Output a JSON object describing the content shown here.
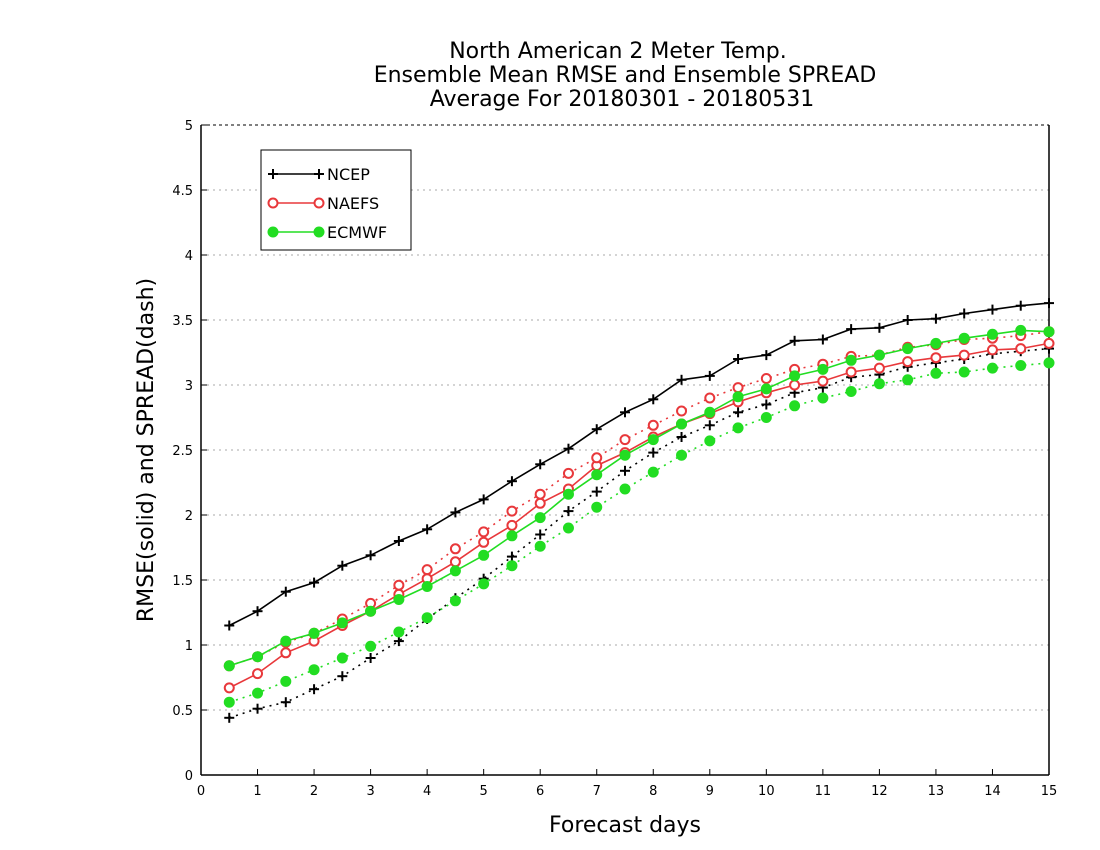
{
  "chart_data": {
    "type": "line",
    "title_lines": [
      "North American 2 Meter Temp.",
      "Ensemble Mean RMSE and Ensemble SPREAD",
      "Average For 20180301 - 20180531"
    ],
    "xlabel": "Forecast days",
    "ylabel": "RMSE(solid) and SPREAD(dash)",
    "xlim": [
      0,
      15
    ],
    "ylim": [
      0,
      5
    ],
    "xticks": [
      0,
      1,
      2,
      3,
      4,
      5,
      6,
      7,
      8,
      9,
      10,
      11,
      12,
      13,
      14,
      15
    ],
    "yticks": [
      0,
      0.5,
      1,
      1.5,
      2,
      2.5,
      3,
      3.5,
      4,
      4.5,
      5
    ],
    "grid": true,
    "legend_position": "top-left",
    "x": [
      0.5,
      1.0,
      1.5,
      2.0,
      2.5,
      3.0,
      3.5,
      4.0,
      4.5,
      5.0,
      5.5,
      6.0,
      6.5,
      7.0,
      7.5,
      8.0,
      8.5,
      9.0,
      9.5,
      10.0,
      10.5,
      11.0,
      11.5,
      12.0,
      12.5,
      13.0,
      13.5,
      14.0,
      14.5,
      15.0
    ],
    "series": [
      {
        "name": "NCEP",
        "color": "#000000",
        "marker": "plus",
        "metric": "RMSE",
        "dash": false,
        "values": [
          1.15,
          1.26,
          1.41,
          1.48,
          1.61,
          1.69,
          1.8,
          1.89,
          2.02,
          2.12,
          2.26,
          2.39,
          2.51,
          2.66,
          2.79,
          2.89,
          3.04,
          3.07,
          3.2,
          3.23,
          3.34,
          3.35,
          3.43,
          3.44,
          3.5,
          3.51,
          3.55,
          3.58,
          3.61,
          3.63
        ]
      },
      {
        "name": "NCEP",
        "color": "#000000",
        "marker": "plus",
        "metric": "SPREAD",
        "dash": true,
        "values": [
          0.44,
          0.51,
          0.56,
          0.66,
          0.76,
          0.9,
          1.03,
          1.2,
          1.36,
          1.51,
          1.68,
          1.85,
          2.03,
          2.18,
          2.34,
          2.48,
          2.6,
          2.69,
          2.79,
          2.85,
          2.94,
          2.98,
          3.06,
          3.08,
          3.14,
          3.17,
          3.2,
          3.24,
          3.26,
          3.28
        ]
      },
      {
        "name": "NAEFS",
        "color": "#e8383b",
        "marker": "circle-open",
        "metric": "RMSE",
        "dash": false,
        "values": [
          0.67,
          0.78,
          0.94,
          1.03,
          1.15,
          1.26,
          1.39,
          1.51,
          1.64,
          1.79,
          1.92,
          2.09,
          2.2,
          2.38,
          2.48,
          2.6,
          2.7,
          2.78,
          2.87,
          2.94,
          3.0,
          3.03,
          3.1,
          3.13,
          3.18,
          3.21,
          3.23,
          3.27,
          3.28,
          3.32
        ]
      },
      {
        "name": "NAEFS",
        "color": "#e8383b",
        "marker": "circle-open",
        "metric": "SPREAD",
        "dash": true,
        "values": [
          0.84,
          0.91,
          1.02,
          1.09,
          1.2,
          1.32,
          1.46,
          1.58,
          1.74,
          1.87,
          2.03,
          2.16,
          2.32,
          2.44,
          2.58,
          2.69,
          2.8,
          2.9,
          2.98,
          3.05,
          3.12,
          3.16,
          3.22,
          3.23,
          3.29,
          3.31,
          3.35,
          3.36,
          3.38,
          3.41
        ]
      },
      {
        "name": "ECMWF",
        "color": "#22dd22",
        "marker": "circle-filled",
        "metric": "RMSE",
        "dash": false,
        "values": [
          0.84,
          0.91,
          1.03,
          1.09,
          1.17,
          1.26,
          1.35,
          1.45,
          1.57,
          1.69,
          1.84,
          1.98,
          2.16,
          2.31,
          2.46,
          2.58,
          2.7,
          2.79,
          2.91,
          2.97,
          3.07,
          3.12,
          3.19,
          3.23,
          3.28,
          3.32,
          3.36,
          3.39,
          3.42,
          3.41
        ]
      },
      {
        "name": "ECMWF",
        "color": "#22dd22",
        "marker": "circle-filled",
        "metric": "SPREAD",
        "dash": true,
        "values": [
          0.56,
          0.63,
          0.72,
          0.81,
          0.9,
          0.99,
          1.1,
          1.21,
          1.34,
          1.47,
          1.61,
          1.76,
          1.9,
          2.06,
          2.2,
          2.33,
          2.46,
          2.57,
          2.67,
          2.75,
          2.84,
          2.9,
          2.95,
          3.01,
          3.04,
          3.09,
          3.1,
          3.13,
          3.15,
          3.17
        ]
      }
    ],
    "legend": [
      {
        "name": "NCEP",
        "color": "#000000",
        "marker": "plus"
      },
      {
        "name": "NAEFS",
        "color": "#e8383b",
        "marker": "circle-open"
      },
      {
        "name": "ECMWF",
        "color": "#22dd22",
        "marker": "circle-filled"
      }
    ]
  }
}
